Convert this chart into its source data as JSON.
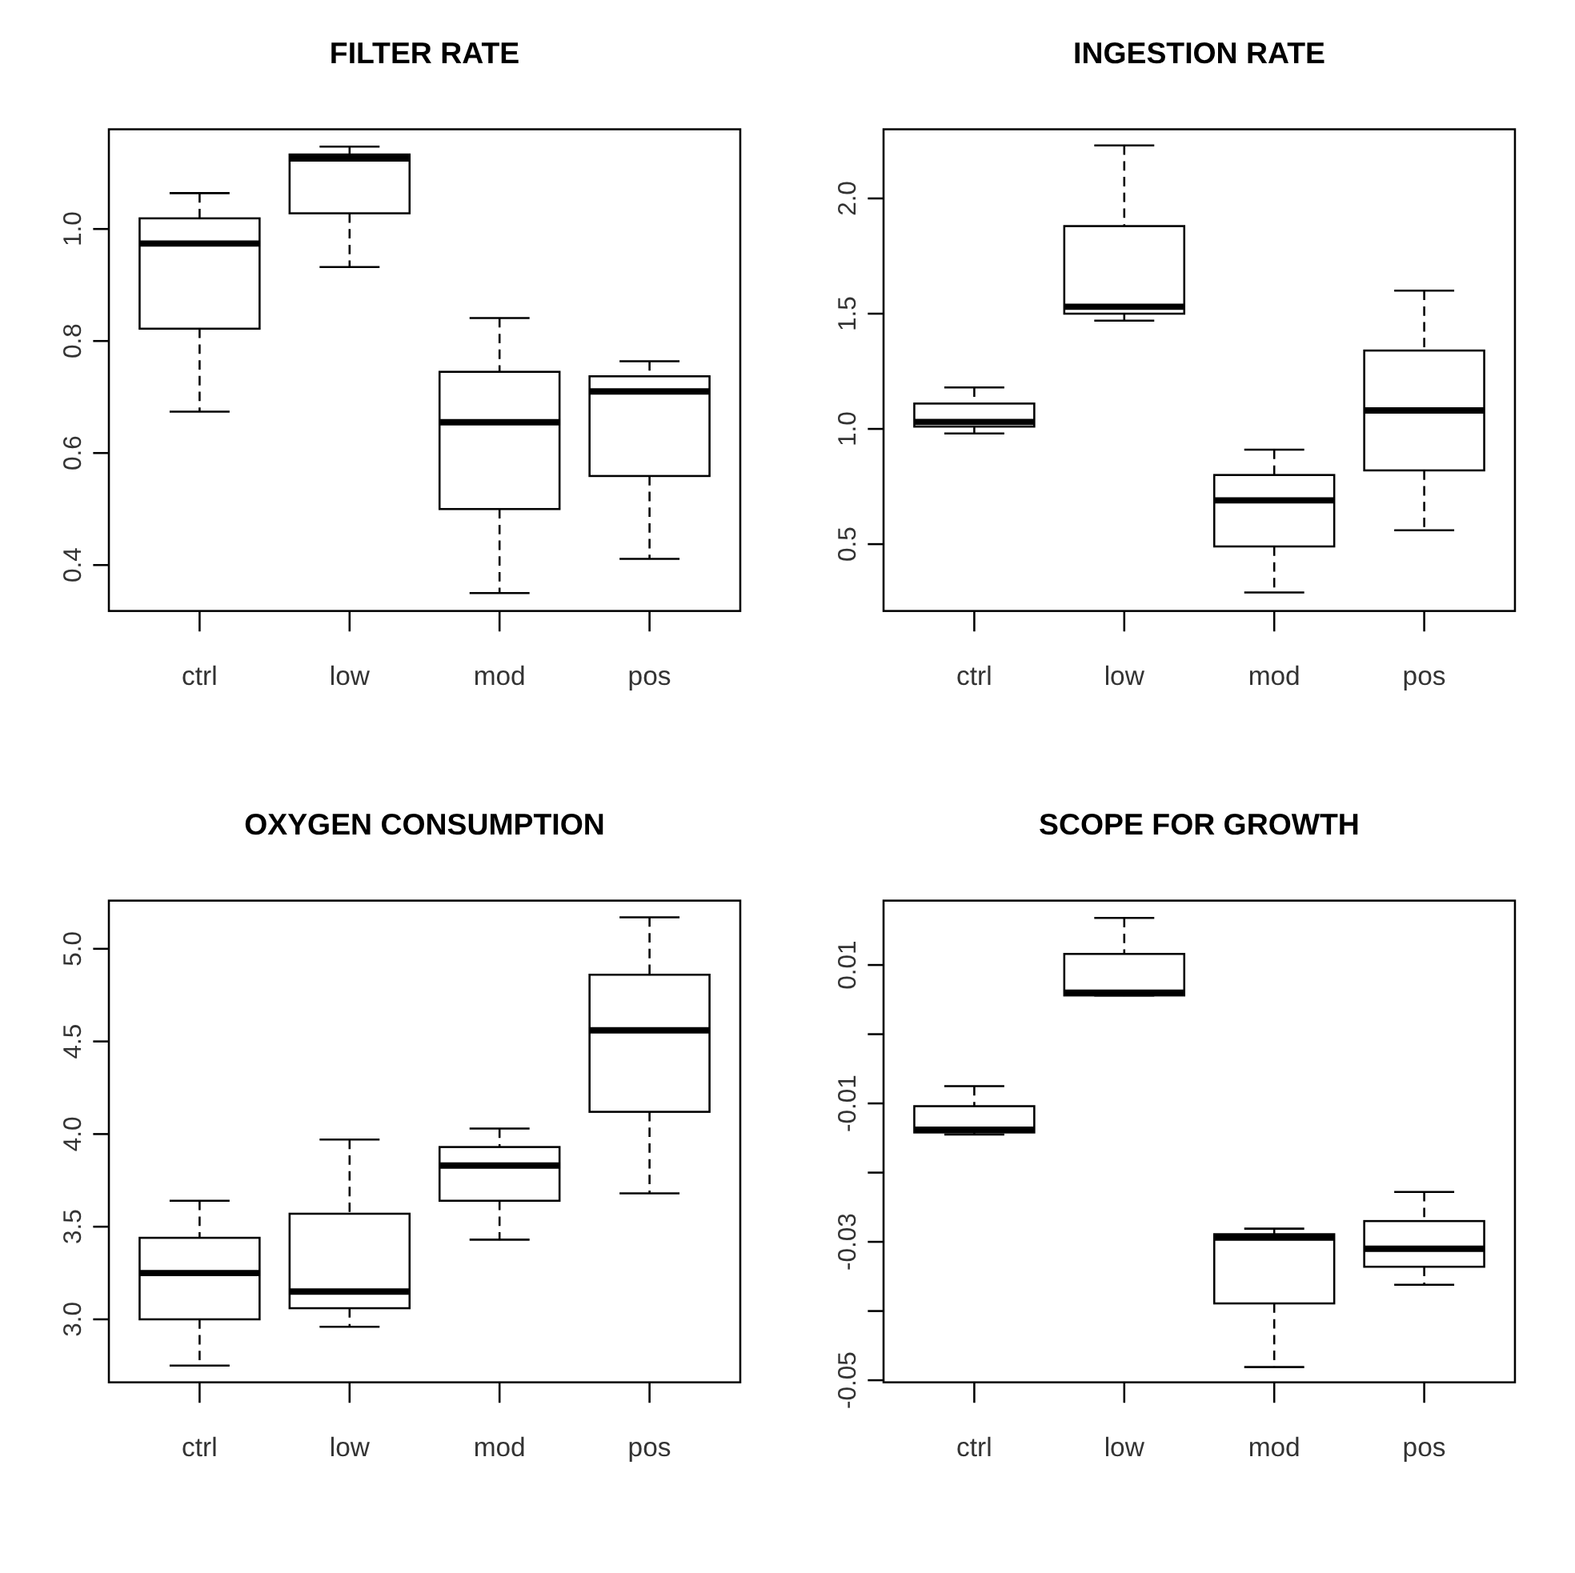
{
  "chart_data": [
    {
      "type": "box",
      "title": "FILTER RATE",
      "categories": [
        "ctrl",
        "low",
        "mod",
        "pos"
      ],
      "ylim": [
        0.318,
        1.178
      ],
      "yticks": [
        {
          "value": 0.4,
          "label": "0.4"
        },
        {
          "value": 0.6,
          "label": "0.6"
        },
        {
          "value": 0.8,
          "label": "0.8"
        },
        {
          "value": 1.0,
          "label": "1.0"
        }
      ],
      "boxes": [
        {
          "low": 0.674,
          "q1": 0.822,
          "median": 0.974,
          "q3": 1.019,
          "high": 1.064
        },
        {
          "low": 0.932,
          "q1": 1.028,
          "median": 1.126,
          "q3": 1.133,
          "high": 1.147
        },
        {
          "low": 0.35,
          "q1": 0.5,
          "median": 0.655,
          "q3": 0.745,
          "high": 0.841
        },
        {
          "low": 0.411,
          "q1": 0.559,
          "median": 0.71,
          "q3": 0.737,
          "high": 0.764
        }
      ]
    },
    {
      "type": "box",
      "title": "INGESTION RATE",
      "categories": [
        "ctrl",
        "low",
        "mod",
        "pos"
      ],
      "ylim": [
        0.21,
        2.3
      ],
      "yticks": [
        {
          "value": 0.5,
          "label": "0.5"
        },
        {
          "value": 1.0,
          "label": "1.0"
        },
        {
          "value": 1.5,
          "label": "1.5"
        },
        {
          "value": 2.0,
          "label": "2.0"
        }
      ],
      "boxes": [
        {
          "low": 0.98,
          "q1": 1.01,
          "median": 1.03,
          "q3": 1.11,
          "high": 1.18
        },
        {
          "low": 1.47,
          "q1": 1.5,
          "median": 1.53,
          "q3": 1.88,
          "high": 2.23
        },
        {
          "low": 0.29,
          "q1": 0.49,
          "median": 0.69,
          "q3": 0.8,
          "high": 0.91
        },
        {
          "low": 0.56,
          "q1": 0.82,
          "median": 1.08,
          "q3": 1.34,
          "high": 1.6
        }
      ]
    },
    {
      "type": "box",
      "title": "OXYGEN CONSUMPTION",
      "categories": [
        "ctrl",
        "low",
        "mod",
        "pos"
      ],
      "ylim": [
        2.66,
        5.26
      ],
      "yticks": [
        {
          "value": 3.0,
          "label": "3.0"
        },
        {
          "value": 3.5,
          "label": "3.5"
        },
        {
          "value": 4.0,
          "label": "4.0"
        },
        {
          "value": 4.5,
          "label": "4.5"
        },
        {
          "value": 5.0,
          "label": "5.0"
        }
      ],
      "boxes": [
        {
          "low": 2.75,
          "q1": 3.0,
          "median": 3.25,
          "q3": 3.44,
          "high": 3.64
        },
        {
          "low": 2.96,
          "q1": 3.06,
          "median": 3.15,
          "q3": 3.57,
          "high": 3.97
        },
        {
          "low": 3.43,
          "q1": 3.64,
          "median": 3.83,
          "q3": 3.93,
          "high": 4.03
        },
        {
          "low": 3.68,
          "q1": 4.12,
          "median": 4.56,
          "q3": 4.86,
          "high": 5.17
        }
      ]
    },
    {
      "type": "box",
      "title": "SCOPE FOR GROWTH",
      "categories": [
        "ctrl",
        "low",
        "mod",
        "pos"
      ],
      "ylim": [
        -0.0503,
        0.0193
      ],
      "yticks": [
        {
          "value": -0.05,
          "label": "-0.05"
        },
        {
          "value": -0.04,
          "label": null
        },
        {
          "value": -0.03,
          "label": "-0.03"
        },
        {
          "value": -0.02,
          "label": null
        },
        {
          "value": -0.01,
          "label": "-0.01"
        },
        {
          "value": 0,
          "label": null
        },
        {
          "value": 0.01,
          "label": "0.01"
        }
      ],
      "boxes": [
        {
          "low": -0.0145,
          "q1": -0.0142,
          "median": -0.0138,
          "q3": -0.0104,
          "high": -0.0075
        },
        {
          "low": 0.0056,
          "q1": 0.0056,
          "median": 0.006,
          "q3": 0.0116,
          "high": 0.0168
        },
        {
          "low": -0.0481,
          "q1": -0.0389,
          "median": -0.0294,
          "q3": -0.0289,
          "high": -0.0281
        },
        {
          "low": -0.0362,
          "q1": -0.0336,
          "median": -0.031,
          "q3": -0.027,
          "high": -0.0228
        }
      ]
    }
  ]
}
